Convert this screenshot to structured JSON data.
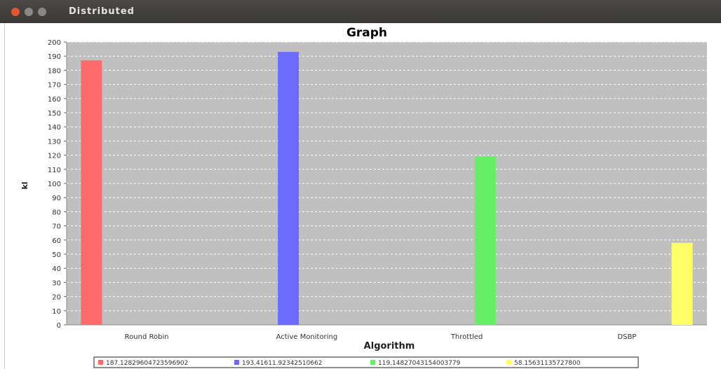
{
  "window": {
    "title": "Distributed"
  },
  "chart_data": {
    "type": "bar",
    "title": "Graph",
    "xlabel": "Algorithm",
    "ylabel": "kl",
    "ylim": [
      0,
      200
    ],
    "yticks": [
      0,
      10,
      20,
      30,
      40,
      50,
      60,
      70,
      80,
      90,
      100,
      110,
      120,
      130,
      140,
      150,
      160,
      170,
      180,
      190,
      200
    ],
    "categories": [
      "Round Robin",
      "Active Monitoring",
      "Throttled",
      "DSBP"
    ],
    "series": [
      {
        "name": "187.12829604723596902",
        "color": "#ff6b6b",
        "values": [
          187,
          null,
          null,
          null
        ]
      },
      {
        "name": "193.41611.92342510662",
        "color": "#6b6bff",
        "values": [
          null,
          193,
          null,
          null
        ]
      },
      {
        "name": "119.14827043154003779",
        "color": "#66ee66",
        "values": [
          null,
          null,
          119,
          null
        ]
      },
      {
        "name": "58.15631135727800",
        "color": "#ffff66",
        "values": [
          null,
          null,
          null,
          58
        ]
      }
    ],
    "grid": true,
    "legend": "bottom",
    "plot_background": "#c0c0c0"
  }
}
